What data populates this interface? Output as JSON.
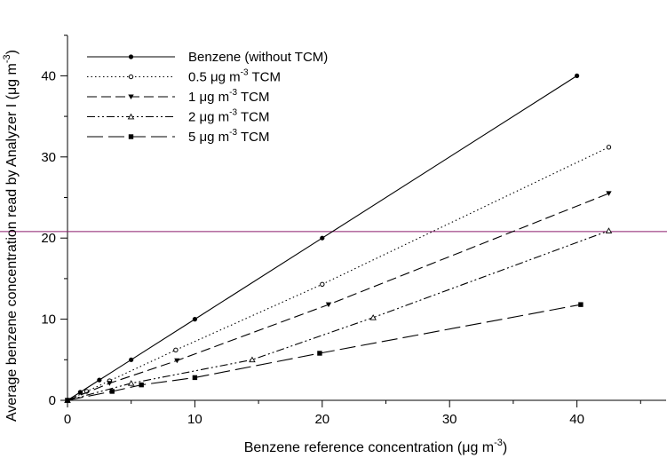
{
  "chart_data": {
    "type": "line",
    "title": "",
    "xlabel": {
      "text": "Benzene reference concentration (",
      "mu": "μ",
      "rest": "g m",
      "sup": "-3",
      "close": ")"
    },
    "ylabel": {
      "text": "Average benzene concentration read by Analyzer I (",
      "mu": "μ",
      "rest": "g m",
      "sup": "-3",
      "close": ")"
    },
    "xlim": [
      0,
      45
    ],
    "ylim": [
      0,
      45
    ],
    "xticks": [
      0,
      10,
      20,
      30,
      40
    ],
    "yticks": [
      0,
      10,
      20,
      30,
      40
    ],
    "grid": false,
    "legend_position": "top-left",
    "reference_line": {
      "y": 20.8,
      "color": "#8b1a6b"
    },
    "series": [
      {
        "name": "Benzene (without TCM)",
        "legend": {
          "pre": "Benzene (without TCM)",
          "sup": "",
          "post": ""
        },
        "marker": "dot",
        "dash": "",
        "points": [
          [
            0,
            0
          ],
          [
            1,
            1
          ],
          [
            2.5,
            2.5
          ],
          [
            5,
            5
          ],
          [
            10,
            10
          ],
          [
            20,
            20
          ],
          [
            40,
            40
          ]
        ]
      },
      {
        "name": "0.5 μg m-3 TCM",
        "legend": {
          "pre": "0.5  μg m",
          "sup": "-3",
          "post": " TCM"
        },
        "marker": "open-circle",
        "dash": "1.5,3",
        "points": [
          [
            0,
            0
          ],
          [
            1.5,
            1.1
          ],
          [
            3.3,
            2.4
          ],
          [
            8.5,
            6.2
          ],
          [
            20,
            14.3
          ],
          [
            42.5,
            31.2
          ]
        ]
      },
      {
        "name": "1 μg m-3 TCM",
        "legend": {
          "pre": "1  μg m",
          "sup": "-3",
          "post": " TCM"
        },
        "marker": "down-triangle",
        "dash": "11,5",
        "points": [
          [
            0,
            0
          ],
          [
            3.3,
            2.1
          ],
          [
            8.6,
            4.9
          ],
          [
            20.5,
            11.8
          ],
          [
            42.5,
            25.5
          ]
        ]
      },
      {
        "name": "2 μg m-3 TCM",
        "legend": {
          "pre": "2  μg m",
          "sup": "-3",
          "post": " TCM"
        },
        "marker": "up-triangle",
        "dash": "9,3,2,3,2,3",
        "points": [
          [
            0,
            0
          ],
          [
            5,
            2.1
          ],
          [
            14.5,
            5.0
          ],
          [
            24,
            10.2
          ],
          [
            42.5,
            20.9
          ]
        ]
      },
      {
        "name": "5 μg m-3 TCM",
        "legend": {
          "pre": "5  μg m",
          "sup": "-3",
          "post": " TCM"
        },
        "marker": "square",
        "dash": "18,6",
        "points": [
          [
            0,
            0
          ],
          [
            3.5,
            1.1
          ],
          [
            5.8,
            1.9
          ],
          [
            10,
            2.8
          ],
          [
            19.8,
            5.8
          ],
          [
            40.3,
            11.8
          ]
        ]
      }
    ]
  }
}
